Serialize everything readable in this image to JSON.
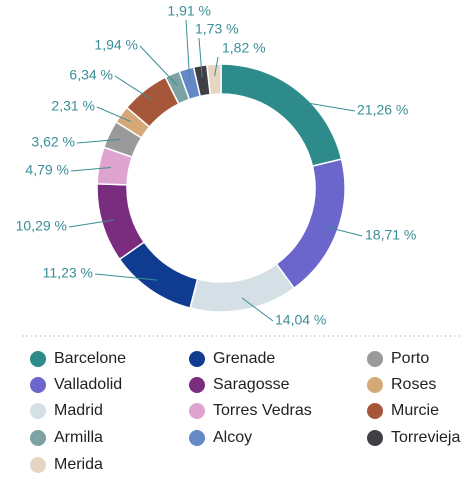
{
  "chart_data": {
    "type": "pie",
    "categories": [
      "Barcelone",
      "Valladolid",
      "Madrid",
      "Grenade",
      "Saragosse",
      "Torres Vedras",
      "Porto",
      "Roses",
      "Murcie",
      "Armilla",
      "Alcoy",
      "Torrevieja",
      "Merida"
    ],
    "values": [
      21.26,
      18.71,
      14.04,
      11.23,
      10.29,
      4.79,
      3.62,
      2.31,
      6.34,
      1.94,
      1.91,
      1.73,
      1.82
    ],
    "value_labels": [
      "21,26 %",
      "18,71 %",
      "14,04 %",
      "11,23 %",
      "10,29 %",
      "4,79 %",
      "3,62 %",
      "2,31 %",
      "6,34 %",
      "1,94 %",
      "1,91 %",
      "1,73 %",
      "1,82 %"
    ],
    "colors": [
      "#2e8b8b",
      "#6a66cc",
      "#d5e0e6",
      "#0f3b91",
      "#7a2d7e",
      "#dfa3cf",
      "#9a9a9a",
      "#d4a977",
      "#a6573a",
      "#7ba3a3",
      "#6588c6",
      "#3f3f45",
      "#e6d5c2"
    ]
  }
}
